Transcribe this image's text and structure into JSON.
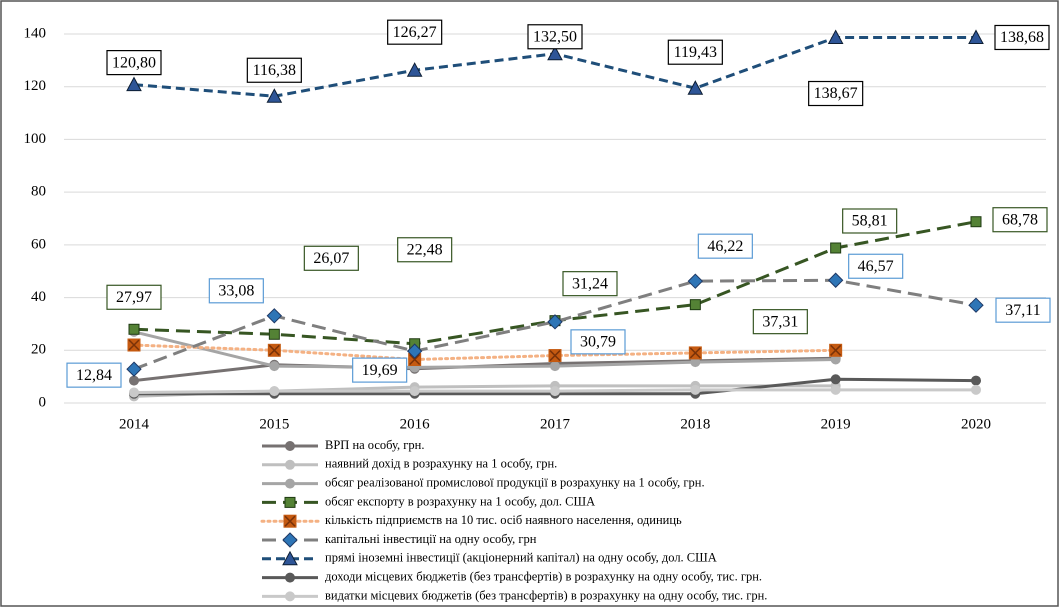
{
  "chart_data": {
    "type": "line",
    "categories": [
      "2014",
      "2015",
      "2016",
      "2017",
      "2018",
      "2019",
      "2020"
    ],
    "ylim": [
      0,
      140
    ],
    "yticks": [
      0,
      20,
      40,
      60,
      80,
      100,
      120,
      140
    ],
    "grid": true,
    "legend": "bottom",
    "series": [
      {
        "name": "ВРП на особу, грн.",
        "color": "#767171",
        "values": [
          8.5,
          14.5,
          13,
          15,
          16,
          17,
          null
        ]
      },
      {
        "name": "наявний дохід в розрахунку на 1 особу, грн.",
        "color": "#bfbfbf",
        "values": [
          2.5,
          4.5,
          6,
          6.5,
          6.5,
          6.5,
          null
        ]
      },
      {
        "name": "обсяг реалізованої промислової продукції в розрахунку на 1 особу, грн.",
        "color": "#a5a5a5",
        "values": [
          27,
          14,
          13.5,
          14,
          15.5,
          16.5,
          null
        ]
      },
      {
        "name": "обсяг експорту в розрахунку на 1 особу, дол. США",
        "color": "#375623",
        "marker_color": "#548235",
        "values": [
          27.97,
          26.07,
          22.48,
          31.24,
          37.31,
          58.81,
          68.78
        ],
        "value_labels": [
          "27,97",
          "26,07",
          "22,48",
          "31,24",
          "37,31",
          "58,81",
          "68,78"
        ]
      },
      {
        "name": "кількість підприємств на 10 тис. осіб наявного населення, одиниць",
        "color": "#f4b183",
        "marker_color": "#c55a11",
        "values": [
          22,
          20,
          16.5,
          18,
          19,
          20,
          null
        ]
      },
      {
        "name": "капітальні інвестиції на одну особу, грн",
        "color": "#7f7f7f",
        "marker_color": "#2e75b6",
        "values": [
          12.84,
          33.08,
          19.69,
          30.79,
          46.22,
          46.57,
          37.11
        ],
        "value_labels": [
          "12,84",
          "33,08",
          "19,69",
          "30,79",
          "46,22",
          "46,57",
          "37,11"
        ]
      },
      {
        "name": "прямі іноземні інвестиції (акціонерний капітал) на одну особу, дол. США",
        "color": "#1f4e79",
        "marker_color": "#2e5597",
        "values": [
          120.8,
          116.38,
          126.27,
          132.5,
          119.43,
          138.67,
          138.68
        ],
        "value_labels": [
          "120,80",
          "116,38",
          "126,27",
          "132,50",
          "119,43",
          "138,67",
          "138,68"
        ]
      },
      {
        "name": "доходи місцевих бюджетів (без трансфертів) в розрахунку на одну особу, тис. грн.",
        "color": "#595959",
        "values": [
          3.5,
          3.5,
          3.5,
          3.5,
          3.5,
          9,
          8.5
        ]
      },
      {
        "name": "видатки місцевих бюджетів (без трансфертів) в розрахунку на одну особу, тис. грн.",
        "color": "#c9c9c9",
        "values": [
          4,
          4.5,
          4.5,
          4.5,
          5,
          5,
          5
        ]
      }
    ]
  }
}
